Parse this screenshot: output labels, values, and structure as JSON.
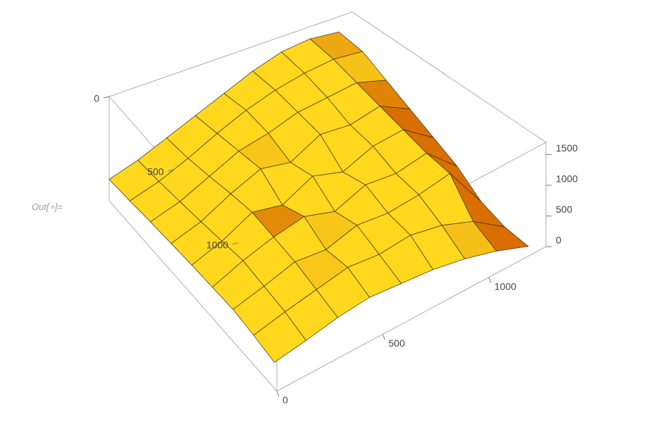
{
  "cell_label": "Out[∘]=",
  "chart_data": {
    "type": "surface",
    "x": [
      0,
      150,
      300,
      450,
      600,
      750,
      900,
      1050,
      1200
    ],
    "y": [
      0,
      160,
      320,
      480,
      640,
      800,
      960,
      1120,
      1280
    ],
    "z": [
      [
        350,
        500,
        700,
        900,
        1100,
        1300,
        1450,
        1500,
        1450
      ],
      [
        380,
        520,
        720,
        950,
        1150,
        1300,
        1400,
        1450,
        1400
      ],
      [
        420,
        560,
        780,
        1000,
        1100,
        1250,
        1300,
        1350,
        1200
      ],
      [
        450,
        600,
        850,
        1050,
        950,
        1200,
        1150,
        1250,
        1000
      ],
      [
        480,
        650,
        900,
        800,
        1050,
        900,
        1100,
        1150,
        800
      ],
      [
        500,
        700,
        850,
        950,
        800,
        1000,
        950,
        1050,
        600
      ],
      [
        520,
        650,
        800,
        750,
        900,
        850,
        900,
        1000,
        300
      ],
      [
        480,
        600,
        700,
        800,
        750,
        800,
        700,
        500,
        150
      ],
      [
        420,
        500,
        600,
        650,
        600,
        550,
        450,
        300,
        100
      ]
    ],
    "xlim": [
      0,
      1270
    ],
    "ylim": [
      0,
      1300
    ],
    "zlim": [
      0,
      1700
    ],
    "xticks": [
      0,
      500,
      1000
    ],
    "yticks": [
      0,
      500,
      1000
    ],
    "zticks": [
      0,
      500,
      1000,
      1500
    ],
    "colors": [
      "#d86f00",
      "#ffd81e"
    ]
  }
}
